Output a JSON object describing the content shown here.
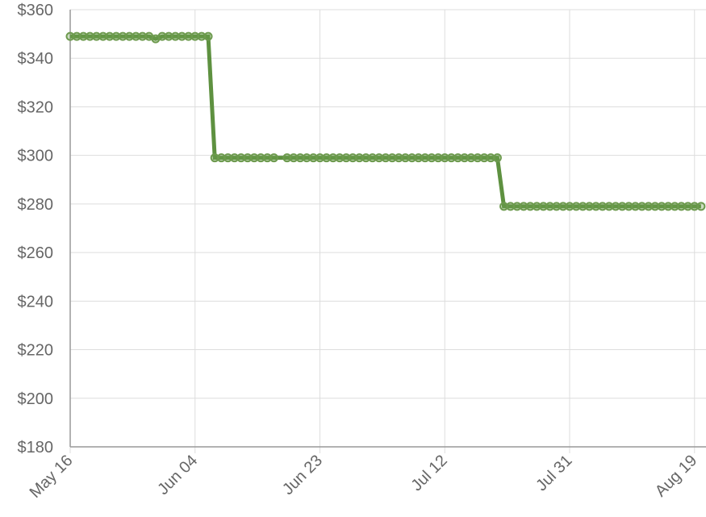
{
  "chart_data": {
    "type": "line",
    "title": "",
    "xlabel": "",
    "ylabel": "",
    "y_tick_labels": [
      "$180",
      "$200",
      "$220",
      "$240",
      "$260",
      "$280",
      "$300",
      "$320",
      "$340",
      "$360"
    ],
    "y_ticks": [
      180,
      200,
      220,
      240,
      260,
      280,
      300,
      320,
      340,
      360
    ],
    "ylim": [
      180,
      360
    ],
    "x_tick_labels": [
      "May 16",
      "Jun 04",
      "Jun 23",
      "Jul 12",
      "Jul 31",
      "Aug 19"
    ],
    "x_ticks": [
      "2024-05-16",
      "2024-06-04",
      "2024-06-23",
      "2024-07-12",
      "2024-07-31",
      "2024-08-19"
    ],
    "xlim": [
      "2024-05-16",
      "2024-08-20"
    ],
    "grid": true,
    "colors": {
      "series": "#5e9140",
      "marker": "#6d9a4e",
      "grid": "#dddddd",
      "axis": "#999999",
      "tick_text": "#666666"
    },
    "series": [
      {
        "segments": [
          {
            "start": "2024-05-16",
            "end": "2024-06-06",
            "value": 349
          },
          {
            "start": "2024-06-07",
            "end": "2024-06-16",
            "value": 299
          },
          {
            "start": "2024-06-18",
            "end": "2024-07-20",
            "value": 299
          },
          {
            "start": "2024-07-21",
            "end": "2024-08-20",
            "value": 279
          }
        ],
        "outliers": [
          {
            "x": "2024-05-29",
            "y": 348
          }
        ]
      }
    ]
  }
}
